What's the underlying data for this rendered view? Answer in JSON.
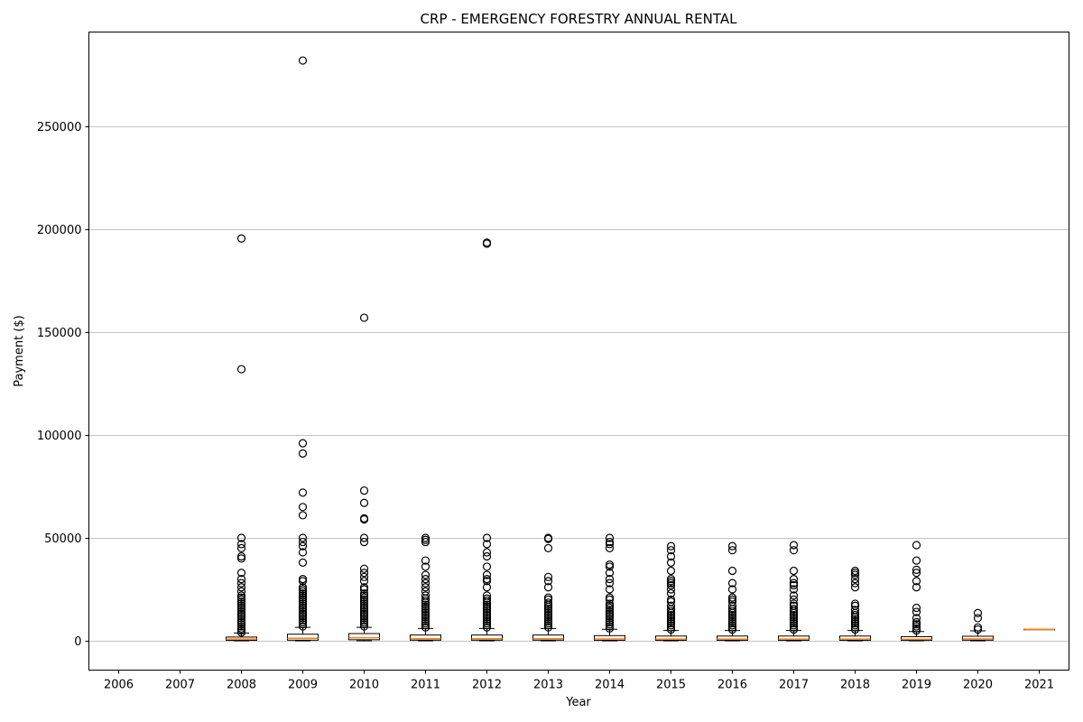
{
  "chart_data": {
    "type": "box",
    "title": "CRP - EMERGENCY FORESTRY ANNUAL RENTAL",
    "xlabel": "Year",
    "ylabel": "Payment ($)",
    "categories": [
      "2006",
      "2007",
      "2008",
      "2009",
      "2010",
      "2011",
      "2012",
      "2013",
      "2014",
      "2015",
      "2016",
      "2017",
      "2018",
      "2019",
      "2020",
      "2021"
    ],
    "ylim": [
      -14000,
      295000
    ],
    "yticks": [
      0,
      50000,
      100000,
      150000,
      200000,
      250000
    ],
    "grid": "y",
    "colors": {
      "median": "#ff7f0e",
      "box": "#000000",
      "grid": "#b0b0b0"
    },
    "boxes": [
      {
        "category": "2006",
        "empty": true
      },
      {
        "category": "2007",
        "empty": true
      },
      {
        "category": "2008",
        "whislo": 0,
        "q1": 200,
        "med": 800,
        "q3": 1800,
        "whishi": 3800,
        "fliers": [
          4000,
          5000,
          6000,
          7000,
          8000,
          9000,
          10000,
          11000,
          12000,
          13000,
          14000,
          15000,
          16000,
          17000,
          18000,
          19000,
          20000,
          21000,
          22000,
          24000,
          26000,
          28000,
          30000,
          33000,
          40000,
          41000,
          45000,
          47000,
          50000,
          132000,
          195500
        ]
      },
      {
        "category": "2009",
        "whislo": 0,
        "q1": 300,
        "med": 1200,
        "q3": 3200,
        "whishi": 6500,
        "fliers": [
          7000,
          8000,
          9000,
          10000,
          11000,
          12000,
          13000,
          14000,
          15000,
          16000,
          17000,
          18000,
          19000,
          20000,
          21000,
          22000,
          23000,
          24000,
          25000,
          26000,
          29000,
          30000,
          38000,
          43000,
          46000,
          48000,
          50000,
          61000,
          65000,
          72000,
          91000,
          96000,
          282000
        ]
      },
      {
        "category": "2010",
        "whislo": 0,
        "q1": 500,
        "med": 1500,
        "q3": 3500,
        "whishi": 6500,
        "fliers": [
          7000,
          8000,
          9000,
          10000,
          11000,
          12000,
          13000,
          14000,
          15000,
          16000,
          17000,
          18000,
          19000,
          20000,
          21000,
          22000,
          23000,
          25000,
          26000,
          29000,
          31000,
          33000,
          35000,
          48000,
          50000,
          59000,
          59500,
          67000,
          73000,
          157000
        ]
      },
      {
        "category": "2011",
        "whislo": 0,
        "q1": 300,
        "med": 1000,
        "q3": 2800,
        "whishi": 6000,
        "fliers": [
          6500,
          7500,
          8500,
          9500,
          10500,
          11500,
          12500,
          13500,
          14500,
          15500,
          16500,
          17500,
          18500,
          19500,
          20500,
          22000,
          24000,
          26000,
          28000,
          30000,
          32000,
          36000,
          39000,
          48000,
          49000,
          50000
        ]
      },
      {
        "category": "2012",
        "whislo": 0,
        "q1": 300,
        "med": 1000,
        "q3": 2800,
        "whishi": 6000,
        "fliers": [
          6500,
          7500,
          8500,
          9500,
          10500,
          11500,
          12500,
          13500,
          14500,
          15500,
          16500,
          17500,
          18500,
          19500,
          20500,
          22000,
          26000,
          29000,
          30000,
          32000,
          36000,
          41000,
          43000,
          47000,
          50000,
          193000,
          193500
        ]
      },
      {
        "category": "2013",
        "whislo": 0,
        "q1": 300,
        "med": 1000,
        "q3": 2800,
        "whishi": 6000,
        "fliers": [
          6500,
          7500,
          8500,
          9500,
          10500,
          11500,
          12500,
          13500,
          14500,
          15500,
          16500,
          17500,
          18500,
          20000,
          21000,
          26000,
          29000,
          31000,
          45000,
          49500,
          50000
        ]
      },
      {
        "category": "2014",
        "whislo": 0,
        "q1": 250,
        "med": 900,
        "q3": 2500,
        "whishi": 5600,
        "fliers": [
          6000,
          7000,
          8000,
          9000,
          10000,
          11000,
          12000,
          13000,
          14000,
          15000,
          16000,
          17000,
          18000,
          20000,
          21000,
          25000,
          28000,
          30000,
          33000,
          36000,
          37000,
          45000,
          47000,
          48000,
          50000
        ]
      },
      {
        "category": "2015",
        "whislo": 0,
        "q1": 250,
        "med": 800,
        "q3": 2300,
        "whishi": 5000,
        "fliers": [
          5500,
          6500,
          7500,
          8500,
          9500,
          10500,
          11500,
          12500,
          13500,
          14500,
          15500,
          17000,
          19000,
          20000,
          23000,
          25000,
          27000,
          28000,
          29000,
          30000,
          34000,
          38000,
          41000,
          44000,
          46000
        ]
      },
      {
        "category": "2016",
        "whislo": 0,
        "q1": 250,
        "med": 800,
        "q3": 2300,
        "whishi": 5000,
        "fliers": [
          5500,
          6500,
          7500,
          8500,
          9500,
          10500,
          11500,
          12500,
          13500,
          14500,
          15500,
          17000,
          19000,
          20000,
          21000,
          25000,
          28000,
          34000,
          44000,
          46000
        ]
      },
      {
        "category": "2017",
        "whislo": 0,
        "q1": 250,
        "med": 800,
        "q3": 2300,
        "whishi": 5000,
        "fliers": [
          5500,
          6500,
          7500,
          8500,
          9500,
          10500,
          11500,
          12500,
          13500,
          14500,
          15500,
          17000,
          18000,
          20000,
          22000,
          25000,
          27000,
          28000,
          30000,
          34000,
          44000,
          46500
        ]
      },
      {
        "category": "2018",
        "whislo": 0,
        "q1": 250,
        "med": 800,
        "q3": 2300,
        "whishi": 5000,
        "fliers": [
          5500,
          6500,
          7500,
          8500,
          9500,
          10500,
          11500,
          12500,
          13500,
          15000,
          17000,
          18000,
          26000,
          28000,
          30000,
          32000,
          33000,
          34000
        ]
      },
      {
        "category": "2019",
        "whislo": 0,
        "q1": 200,
        "med": 700,
        "q3": 2000,
        "whishi": 4500,
        "fliers": [
          5000,
          6000,
          7000,
          8000,
          9000,
          11000,
          14000,
          16000,
          26000,
          29000,
          33000,
          34500,
          39000,
          46500
        ]
      },
      {
        "category": "2020",
        "whislo": 0,
        "q1": 300,
        "med": 900,
        "q3": 2200,
        "whishi": 4800,
        "fliers": [
          5500,
          6500,
          11000,
          13500
        ]
      },
      {
        "category": "2021",
        "whislo": 5600,
        "q1": 5600,
        "med": 5600,
        "q3": 5600,
        "whishi": 5600,
        "fliers": []
      }
    ]
  }
}
